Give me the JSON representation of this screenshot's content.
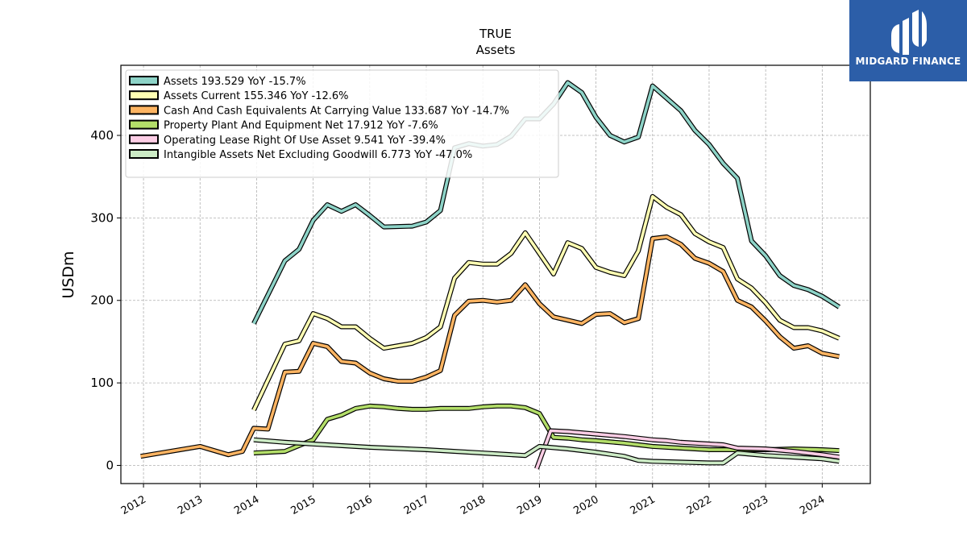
{
  "chart_data": {
    "type": "line",
    "title": "TRUE",
    "subtitle": "Assets",
    "ylabel": "USDm",
    "xlabel": "",
    "xlim": [
      2011.6,
      2024.85
    ],
    "ylim": [
      -22,
      485
    ],
    "yticks": [
      0,
      100,
      200,
      300,
      400
    ],
    "xticks": [
      "2012",
      "2013",
      "2014",
      "2015",
      "2016",
      "2017",
      "2018",
      "2019",
      "2020",
      "2021",
      "2022",
      "2023",
      "2024"
    ],
    "grid": true,
    "legend_position": "top-left",
    "series": [
      {
        "name": "Assets",
        "legend": "Assets  193.529 YoY -15.7%",
        "color": "#8dd3c7",
        "points": [
          [
            2013.95,
            172
          ],
          [
            2014.5,
            248
          ],
          [
            2014.75,
            262
          ],
          [
            2015.0,
            297
          ],
          [
            2015.25,
            316
          ],
          [
            2015.5,
            308
          ],
          [
            2015.75,
            316
          ],
          [
            2016.0,
            303
          ],
          [
            2016.25,
            289
          ],
          [
            2016.75,
            290
          ],
          [
            2017.0,
            295
          ],
          [
            2017.25,
            309
          ],
          [
            2017.5,
            385
          ],
          [
            2017.75,
            390
          ],
          [
            2018.0,
            387
          ],
          [
            2018.25,
            389
          ],
          [
            2018.5,
            399
          ],
          [
            2018.75,
            420
          ],
          [
            2019.0,
            420
          ],
          [
            2019.25,
            438
          ],
          [
            2019.5,
            464
          ],
          [
            2019.75,
            452
          ],
          [
            2020.0,
            422
          ],
          [
            2020.25,
            400
          ],
          [
            2020.5,
            392
          ],
          [
            2020.75,
            398
          ],
          [
            2021.0,
            460
          ],
          [
            2021.25,
            445
          ],
          [
            2021.5,
            430
          ],
          [
            2021.75,
            406
          ],
          [
            2022.0,
            389
          ],
          [
            2022.25,
            366
          ],
          [
            2022.5,
            348
          ],
          [
            2022.75,
            272
          ],
          [
            2023.0,
            254
          ],
          [
            2023.25,
            230
          ],
          [
            2023.5,
            218
          ],
          [
            2023.75,
            213
          ],
          [
            2024.0,
            205
          ],
          [
            2024.3,
            192
          ]
        ]
      },
      {
        "name": "Assets Current",
        "legend": "Assets Current  155.346 YoY -12.6%",
        "color": "#ffffb3",
        "points": [
          [
            2013.95,
            67
          ],
          [
            2014.5,
            147
          ],
          [
            2014.75,
            151
          ],
          [
            2015.0,
            184
          ],
          [
            2015.25,
            178
          ],
          [
            2015.5,
            168
          ],
          [
            2015.75,
            168
          ],
          [
            2016.0,
            154
          ],
          [
            2016.25,
            142
          ],
          [
            2016.75,
            148
          ],
          [
            2017.0,
            155
          ],
          [
            2017.25,
            168
          ],
          [
            2017.5,
            227
          ],
          [
            2017.75,
            246
          ],
          [
            2018.0,
            244
          ],
          [
            2018.25,
            244
          ],
          [
            2018.5,
            257
          ],
          [
            2018.75,
            282
          ],
          [
            2019.0,
            257
          ],
          [
            2019.25,
            232
          ],
          [
            2019.5,
            270
          ],
          [
            2019.75,
            263
          ],
          [
            2020.0,
            240
          ],
          [
            2020.25,
            234
          ],
          [
            2020.5,
            230
          ],
          [
            2020.75,
            260
          ],
          [
            2021.0,
            326
          ],
          [
            2021.25,
            313
          ],
          [
            2021.5,
            304
          ],
          [
            2021.75,
            281
          ],
          [
            2022.0,
            271
          ],
          [
            2022.25,
            264
          ],
          [
            2022.5,
            226
          ],
          [
            2022.75,
            215
          ],
          [
            2023.0,
            197
          ],
          [
            2023.25,
            176
          ],
          [
            2023.5,
            167
          ],
          [
            2023.75,
            167
          ],
          [
            2024.0,
            163
          ],
          [
            2024.3,
            154
          ]
        ]
      },
      {
        "name": "Cash And Cash Equivalents At Carrying Value",
        "legend": "Cash And Cash Equivalents At Carrying Value  133.687 YoY -14.7%",
        "color": "#fdb462",
        "points": [
          [
            2011.95,
            11
          ],
          [
            2013.0,
            23
          ],
          [
            2013.5,
            13
          ],
          [
            2013.75,
            17
          ],
          [
            2013.95,
            45
          ],
          [
            2014.2,
            44
          ],
          [
            2014.5,
            113
          ],
          [
            2014.75,
            114
          ],
          [
            2015.0,
            148
          ],
          [
            2015.25,
            144
          ],
          [
            2015.5,
            126
          ],
          [
            2015.75,
            124
          ],
          [
            2016.0,
            112
          ],
          [
            2016.25,
            105
          ],
          [
            2016.5,
            102
          ],
          [
            2016.75,
            102
          ],
          [
            2017.0,
            107
          ],
          [
            2017.25,
            115
          ],
          [
            2017.5,
            182
          ],
          [
            2017.75,
            199
          ],
          [
            2018.0,
            200
          ],
          [
            2018.25,
            198
          ],
          [
            2018.5,
            200
          ],
          [
            2018.75,
            219
          ],
          [
            2019.0,
            196
          ],
          [
            2019.25,
            180
          ],
          [
            2019.5,
            176
          ],
          [
            2019.75,
            172
          ],
          [
            2020.0,
            183
          ],
          [
            2020.25,
            184
          ],
          [
            2020.5,
            173
          ],
          [
            2020.75,
            178
          ],
          [
            2021.0,
            275
          ],
          [
            2021.25,
            277
          ],
          [
            2021.5,
            268
          ],
          [
            2021.75,
            251
          ],
          [
            2022.0,
            245
          ],
          [
            2022.25,
            235
          ],
          [
            2022.5,
            200
          ],
          [
            2022.75,
            192
          ],
          [
            2023.0,
            175
          ],
          [
            2023.25,
            156
          ],
          [
            2023.5,
            142
          ],
          [
            2023.75,
            145
          ],
          [
            2024.0,
            136
          ],
          [
            2024.3,
            132
          ]
        ]
      },
      {
        "name": "Property Plant And Equipment Net",
        "legend": "Property Plant And Equipment Net  17.912 YoY -7.6%",
        "color": "#b3de69",
        "points": [
          [
            2013.95,
            15
          ],
          [
            2014.5,
            17
          ],
          [
            2015.0,
            31
          ],
          [
            2015.25,
            56
          ],
          [
            2015.5,
            61
          ],
          [
            2015.75,
            69
          ],
          [
            2016.0,
            72
          ],
          [
            2016.25,
            71
          ],
          [
            2016.5,
            69
          ],
          [
            2016.75,
            68
          ],
          [
            2017.0,
            68
          ],
          [
            2017.25,
            69
          ],
          [
            2017.5,
            69
          ],
          [
            2017.75,
            69
          ],
          [
            2018.0,
            71
          ],
          [
            2018.25,
            72
          ],
          [
            2018.5,
            72
          ],
          [
            2018.75,
            70
          ],
          [
            2019.0,
            63
          ],
          [
            2019.25,
            34
          ],
          [
            2019.5,
            33
          ],
          [
            2019.75,
            31
          ],
          [
            2020.0,
            30
          ],
          [
            2020.5,
            27
          ],
          [
            2020.75,
            25
          ],
          [
            2021.0,
            23
          ],
          [
            2021.5,
            21
          ],
          [
            2022.0,
            19
          ],
          [
            2022.5,
            19
          ],
          [
            2023.0,
            19
          ],
          [
            2023.5,
            20
          ],
          [
            2024.0,
            19
          ],
          [
            2024.3,
            18
          ]
        ]
      },
      {
        "name": "Operating Lease Right Of Use Asset",
        "legend": "Operating Lease Right Of Use Asset  9.541 YoY -39.4%",
        "color": "#fccde5",
        "points": [
          [
            2018.95,
            -4
          ],
          [
            2019.2,
            42
          ],
          [
            2019.5,
            41
          ],
          [
            2020.0,
            38
          ],
          [
            2020.5,
            35
          ],
          [
            2021.0,
            31
          ],
          [
            2021.25,
            30
          ],
          [
            2021.5,
            28
          ],
          [
            2022.0,
            26
          ],
          [
            2022.25,
            25
          ],
          [
            2022.5,
            21
          ],
          [
            2023.0,
            20
          ],
          [
            2023.5,
            17
          ],
          [
            2024.0,
            13
          ],
          [
            2024.3,
            10
          ]
        ]
      },
      {
        "name": "Intangible Assets Net Excluding Goodwill",
        "legend": "Intangible Assets Net Excluding Goodwill  6.773 YoY -47.0%",
        "color": "#ccebc5",
        "points": [
          [
            2013.95,
            31
          ],
          [
            2014.5,
            28
          ],
          [
            2015.0,
            26
          ],
          [
            2016.0,
            22
          ],
          [
            2017.0,
            19
          ],
          [
            2018.0,
            15
          ],
          [
            2018.75,
            12
          ],
          [
            2019.0,
            23
          ],
          [
            2019.5,
            20
          ],
          [
            2020.0,
            16
          ],
          [
            2020.5,
            11
          ],
          [
            2020.75,
            6
          ],
          [
            2021.0,
            5
          ],
          [
            2021.5,
            4
          ],
          [
            2022.0,
            3
          ],
          [
            2022.25,
            3
          ],
          [
            2022.5,
            15
          ],
          [
            2023.0,
            12
          ],
          [
            2023.5,
            10
          ],
          [
            2024.0,
            8
          ],
          [
            2024.3,
            5
          ]
        ]
      }
    ]
  },
  "logo": {
    "name": "MIDGARD FINANCE"
  }
}
